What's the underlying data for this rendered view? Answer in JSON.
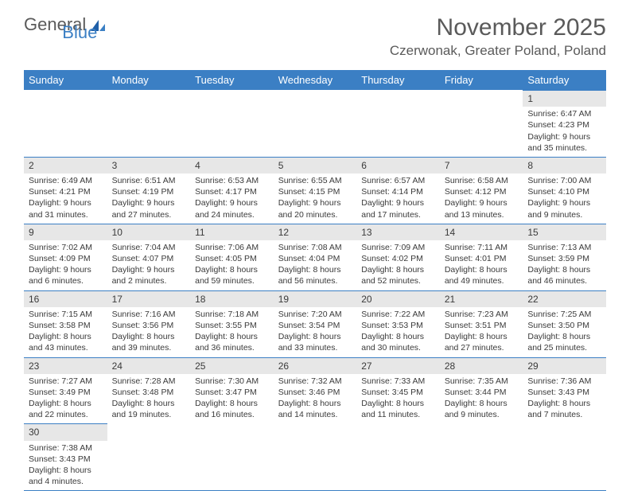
{
  "logo": {
    "general": "General",
    "blue": "Blue"
  },
  "title": "November 2025",
  "location": "Czerwonak, Greater Poland, Poland",
  "colors": {
    "header_bg": "#3b7fc4",
    "header_text": "#ffffff",
    "daynum_bg": "#e7e7e7",
    "row_border": "#3b7fc4",
    "text": "#3a3a3a",
    "page_bg": "#ffffff"
  },
  "daynames": [
    "Sunday",
    "Monday",
    "Tuesday",
    "Wednesday",
    "Thursday",
    "Friday",
    "Saturday"
  ],
  "weeks": [
    [
      null,
      null,
      null,
      null,
      null,
      null,
      {
        "n": "1",
        "sr": "Sunrise: 6:47 AM",
        "ss": "Sunset: 4:23 PM",
        "dl1": "Daylight: 9 hours",
        "dl2": "and 35 minutes."
      }
    ],
    [
      {
        "n": "2",
        "sr": "Sunrise: 6:49 AM",
        "ss": "Sunset: 4:21 PM",
        "dl1": "Daylight: 9 hours",
        "dl2": "and 31 minutes."
      },
      {
        "n": "3",
        "sr": "Sunrise: 6:51 AM",
        "ss": "Sunset: 4:19 PM",
        "dl1": "Daylight: 9 hours",
        "dl2": "and 27 minutes."
      },
      {
        "n": "4",
        "sr": "Sunrise: 6:53 AM",
        "ss": "Sunset: 4:17 PM",
        "dl1": "Daylight: 9 hours",
        "dl2": "and 24 minutes."
      },
      {
        "n": "5",
        "sr": "Sunrise: 6:55 AM",
        "ss": "Sunset: 4:15 PM",
        "dl1": "Daylight: 9 hours",
        "dl2": "and 20 minutes."
      },
      {
        "n": "6",
        "sr": "Sunrise: 6:57 AM",
        "ss": "Sunset: 4:14 PM",
        "dl1": "Daylight: 9 hours",
        "dl2": "and 17 minutes."
      },
      {
        "n": "7",
        "sr": "Sunrise: 6:58 AM",
        "ss": "Sunset: 4:12 PM",
        "dl1": "Daylight: 9 hours",
        "dl2": "and 13 minutes."
      },
      {
        "n": "8",
        "sr": "Sunrise: 7:00 AM",
        "ss": "Sunset: 4:10 PM",
        "dl1": "Daylight: 9 hours",
        "dl2": "and 9 minutes."
      }
    ],
    [
      {
        "n": "9",
        "sr": "Sunrise: 7:02 AM",
        "ss": "Sunset: 4:09 PM",
        "dl1": "Daylight: 9 hours",
        "dl2": "and 6 minutes."
      },
      {
        "n": "10",
        "sr": "Sunrise: 7:04 AM",
        "ss": "Sunset: 4:07 PM",
        "dl1": "Daylight: 9 hours",
        "dl2": "and 2 minutes."
      },
      {
        "n": "11",
        "sr": "Sunrise: 7:06 AM",
        "ss": "Sunset: 4:05 PM",
        "dl1": "Daylight: 8 hours",
        "dl2": "and 59 minutes."
      },
      {
        "n": "12",
        "sr": "Sunrise: 7:08 AM",
        "ss": "Sunset: 4:04 PM",
        "dl1": "Daylight: 8 hours",
        "dl2": "and 56 minutes."
      },
      {
        "n": "13",
        "sr": "Sunrise: 7:09 AM",
        "ss": "Sunset: 4:02 PM",
        "dl1": "Daylight: 8 hours",
        "dl2": "and 52 minutes."
      },
      {
        "n": "14",
        "sr": "Sunrise: 7:11 AM",
        "ss": "Sunset: 4:01 PM",
        "dl1": "Daylight: 8 hours",
        "dl2": "and 49 minutes."
      },
      {
        "n": "15",
        "sr": "Sunrise: 7:13 AM",
        "ss": "Sunset: 3:59 PM",
        "dl1": "Daylight: 8 hours",
        "dl2": "and 46 minutes."
      }
    ],
    [
      {
        "n": "16",
        "sr": "Sunrise: 7:15 AM",
        "ss": "Sunset: 3:58 PM",
        "dl1": "Daylight: 8 hours",
        "dl2": "and 43 minutes."
      },
      {
        "n": "17",
        "sr": "Sunrise: 7:16 AM",
        "ss": "Sunset: 3:56 PM",
        "dl1": "Daylight: 8 hours",
        "dl2": "and 39 minutes."
      },
      {
        "n": "18",
        "sr": "Sunrise: 7:18 AM",
        "ss": "Sunset: 3:55 PM",
        "dl1": "Daylight: 8 hours",
        "dl2": "and 36 minutes."
      },
      {
        "n": "19",
        "sr": "Sunrise: 7:20 AM",
        "ss": "Sunset: 3:54 PM",
        "dl1": "Daylight: 8 hours",
        "dl2": "and 33 minutes."
      },
      {
        "n": "20",
        "sr": "Sunrise: 7:22 AM",
        "ss": "Sunset: 3:53 PM",
        "dl1": "Daylight: 8 hours",
        "dl2": "and 30 minutes."
      },
      {
        "n": "21",
        "sr": "Sunrise: 7:23 AM",
        "ss": "Sunset: 3:51 PM",
        "dl1": "Daylight: 8 hours",
        "dl2": "and 27 minutes."
      },
      {
        "n": "22",
        "sr": "Sunrise: 7:25 AM",
        "ss": "Sunset: 3:50 PM",
        "dl1": "Daylight: 8 hours",
        "dl2": "and 25 minutes."
      }
    ],
    [
      {
        "n": "23",
        "sr": "Sunrise: 7:27 AM",
        "ss": "Sunset: 3:49 PM",
        "dl1": "Daylight: 8 hours",
        "dl2": "and 22 minutes."
      },
      {
        "n": "24",
        "sr": "Sunrise: 7:28 AM",
        "ss": "Sunset: 3:48 PM",
        "dl1": "Daylight: 8 hours",
        "dl2": "and 19 minutes."
      },
      {
        "n": "25",
        "sr": "Sunrise: 7:30 AM",
        "ss": "Sunset: 3:47 PM",
        "dl1": "Daylight: 8 hours",
        "dl2": "and 16 minutes."
      },
      {
        "n": "26",
        "sr": "Sunrise: 7:32 AM",
        "ss": "Sunset: 3:46 PM",
        "dl1": "Daylight: 8 hours",
        "dl2": "and 14 minutes."
      },
      {
        "n": "27",
        "sr": "Sunrise: 7:33 AM",
        "ss": "Sunset: 3:45 PM",
        "dl1": "Daylight: 8 hours",
        "dl2": "and 11 minutes."
      },
      {
        "n": "28",
        "sr": "Sunrise: 7:35 AM",
        "ss": "Sunset: 3:44 PM",
        "dl1": "Daylight: 8 hours",
        "dl2": "and 9 minutes."
      },
      {
        "n": "29",
        "sr": "Sunrise: 7:36 AM",
        "ss": "Sunset: 3:43 PM",
        "dl1": "Daylight: 8 hours",
        "dl2": "and 7 minutes."
      }
    ],
    [
      {
        "n": "30",
        "sr": "Sunrise: 7:38 AM",
        "ss": "Sunset: 3:43 PM",
        "dl1": "Daylight: 8 hours",
        "dl2": "and 4 minutes."
      },
      null,
      null,
      null,
      null,
      null,
      null
    ]
  ]
}
